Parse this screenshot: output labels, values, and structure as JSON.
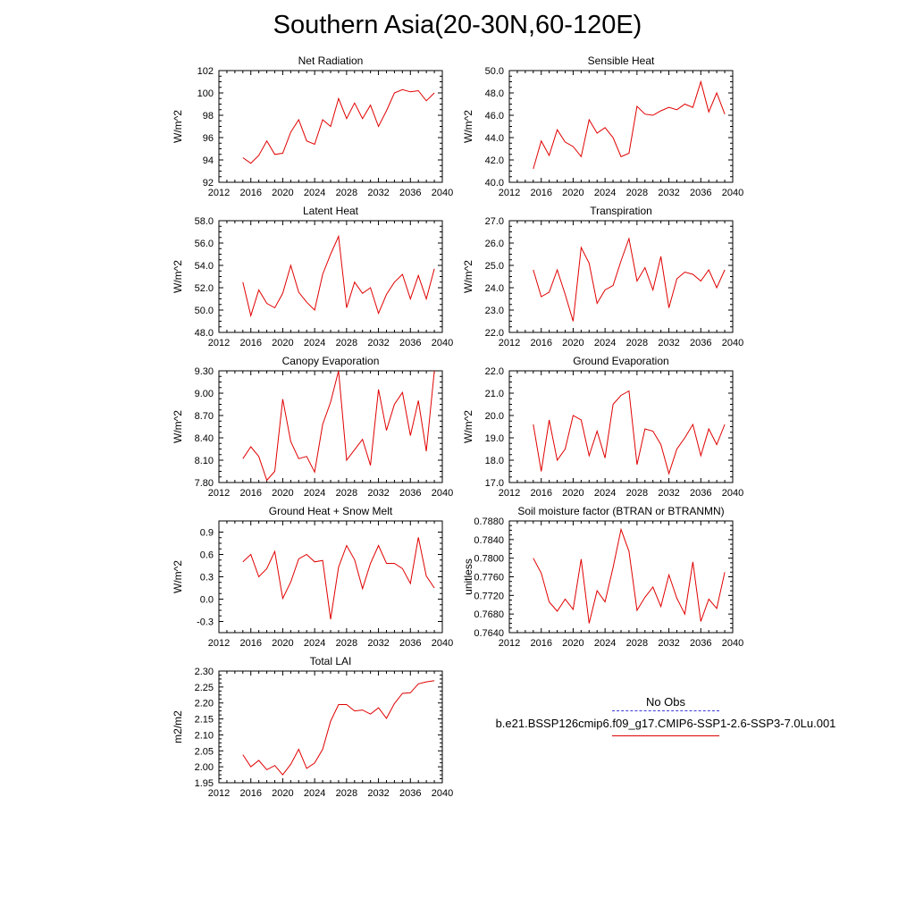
{
  "page_title": "Southern Asia(20-30N,60-120E)",
  "legend": {
    "obs_label": "No Obs",
    "case_label": "b.e21.BSSP126cmip6.f09_g17.CMIP6-SSP1-2.6-SSP3-7.0Lu.001",
    "obs_color": "#3b3bd6",
    "case_color": "#e00000"
  },
  "chart_data": [
    {
      "type": "line",
      "title": "Net Radiation",
      "ylabel": "W/m^2",
      "xlim": [
        2012,
        2040
      ],
      "xticks": [
        "2012",
        "2016",
        "2020",
        "2024",
        "2028",
        "2032",
        "2036",
        "2040"
      ],
      "ylim": [
        92,
        102
      ],
      "yticks": [
        "92",
        "94",
        "96",
        "98",
        "100",
        "102"
      ],
      "series": [
        {
          "color": "#e00000",
          "x": [
            2015,
            2016,
            2017,
            2018,
            2019,
            2020,
            2021,
            2022,
            2023,
            2024,
            2025,
            2026,
            2027,
            2028,
            2029,
            2030,
            2031,
            2032,
            2033,
            2034,
            2035,
            2036,
            2037,
            2038,
            2039
          ],
          "y": [
            94.2,
            93.7,
            94.4,
            95.7,
            94.5,
            94.6,
            96.5,
            97.6,
            95.7,
            95.4,
            97.6,
            97.0,
            99.5,
            97.7,
            99.1,
            97.7,
            98.9,
            97.0,
            98.4,
            100.0,
            100.3,
            100.1,
            100.2,
            99.3,
            100.0
          ]
        }
      ]
    },
    {
      "type": "line",
      "title": "Sensible Heat",
      "ylabel": "W/m^2",
      "xlim": [
        2012,
        2040
      ],
      "xticks": [
        "2012",
        "2016",
        "2020",
        "2024",
        "2028",
        "2032",
        "2036",
        "2040"
      ],
      "ylim": [
        40,
        50
      ],
      "yticks": [
        "40.0",
        "42.0",
        "44.0",
        "46.0",
        "48.0",
        "50.0"
      ],
      "series": [
        {
          "color": "#e00000",
          "x": [
            2015,
            2016,
            2017,
            2018,
            2019,
            2020,
            2021,
            2022,
            2023,
            2024,
            2025,
            2026,
            2027,
            2028,
            2029,
            2030,
            2031,
            2032,
            2033,
            2034,
            2035,
            2036,
            2037,
            2038,
            2039
          ],
          "y": [
            41.2,
            43.7,
            42.4,
            44.7,
            43.6,
            43.2,
            42.3,
            45.6,
            44.4,
            44.9,
            44.0,
            42.3,
            42.6,
            46.8,
            46.1,
            46.0,
            46.4,
            46.7,
            46.5,
            47.0,
            46.7,
            49.0,
            46.3,
            48.0,
            46.1
          ]
        }
      ]
    },
    {
      "type": "line",
      "title": "Latent Heat",
      "ylabel": "W/m^2",
      "xlim": [
        2012,
        2040
      ],
      "xticks": [
        "2012",
        "2016",
        "2020",
        "2024",
        "2028",
        "2032",
        "2036",
        "2040"
      ],
      "ylim": [
        48,
        58
      ],
      "yticks": [
        "48.0",
        "50.0",
        "52.0",
        "54.0",
        "56.0",
        "58.0"
      ],
      "series": [
        {
          "color": "#e00000",
          "x": [
            2015,
            2016,
            2017,
            2018,
            2019,
            2020,
            2021,
            2022,
            2023,
            2024,
            2025,
            2026,
            2027,
            2028,
            2029,
            2030,
            2031,
            2032,
            2033,
            2034,
            2035,
            2036,
            2037,
            2038,
            2039
          ],
          "y": [
            52.5,
            49.5,
            51.8,
            50.6,
            50.2,
            51.5,
            54.0,
            51.6,
            50.7,
            50.0,
            53.2,
            55.0,
            56.6,
            50.2,
            52.5,
            51.5,
            52.0,
            49.7,
            51.4,
            52.5,
            53.2,
            51.0,
            53.1,
            51.0,
            53.7
          ]
        }
      ]
    },
    {
      "type": "line",
      "title": "Transpiration",
      "ylabel": "W/m^2",
      "xlim": [
        2012,
        2040
      ],
      "xticks": [
        "2012",
        "2016",
        "2020",
        "2024",
        "2028",
        "2032",
        "2036",
        "2040"
      ],
      "ylim": [
        22,
        27
      ],
      "yticks": [
        "22.0",
        "23.0",
        "24.0",
        "25.0",
        "26.0",
        "27.0"
      ],
      "series": [
        {
          "color": "#e00000",
          "x": [
            2015,
            2016,
            2017,
            2018,
            2019,
            2020,
            2021,
            2022,
            2023,
            2024,
            2025,
            2026,
            2027,
            2028,
            2029,
            2030,
            2031,
            2032,
            2033,
            2034,
            2035,
            2036,
            2037,
            2038,
            2039
          ],
          "y": [
            24.8,
            23.6,
            23.8,
            24.8,
            23.7,
            22.5,
            25.8,
            25.1,
            23.3,
            23.9,
            24.1,
            25.2,
            26.2,
            24.3,
            24.9,
            23.9,
            25.4,
            23.1,
            24.4,
            24.7,
            24.6,
            24.3,
            24.8,
            24.0,
            24.8
          ]
        }
      ]
    },
    {
      "type": "line",
      "title": "Canopy Evaporation",
      "ylabel": "W/m^2",
      "xlim": [
        2012,
        2040
      ],
      "xticks": [
        "2012",
        "2016",
        "2020",
        "2024",
        "2028",
        "2032",
        "2036",
        "2040"
      ],
      "ylim": [
        7.8,
        9.3
      ],
      "yticks": [
        "7.80",
        "8.10",
        "8.40",
        "8.70",
        "9.00",
        "9.30"
      ],
      "series": [
        {
          "color": "#e00000",
          "x": [
            2015,
            2016,
            2017,
            2018,
            2019,
            2020,
            2021,
            2022,
            2023,
            2024,
            2025,
            2026,
            2027,
            2028,
            2029,
            2030,
            2031,
            2032,
            2033,
            2034,
            2035,
            2036,
            2037,
            2038,
            2039
          ],
          "y": [
            8.12,
            8.28,
            8.15,
            7.83,
            7.95,
            8.92,
            8.35,
            8.12,
            8.15,
            7.94,
            8.58,
            8.88,
            9.3,
            8.1,
            8.24,
            8.38,
            8.03,
            9.05,
            8.5,
            8.85,
            9.01,
            8.43,
            8.9,
            8.22,
            9.3
          ]
        }
      ]
    },
    {
      "type": "line",
      "title": "Ground Evaporation",
      "ylabel": "W/m^2",
      "xlim": [
        2012,
        2040
      ],
      "xticks": [
        "2012",
        "2016",
        "2020",
        "2024",
        "2028",
        "2032",
        "2036",
        "2040"
      ],
      "ylim": [
        17,
        22
      ],
      "yticks": [
        "17.0",
        "18.0",
        "19.0",
        "20.0",
        "21.0",
        "22.0"
      ],
      "series": [
        {
          "color": "#e00000",
          "x": [
            2015,
            2016,
            2017,
            2018,
            2019,
            2020,
            2021,
            2022,
            2023,
            2024,
            2025,
            2026,
            2027,
            2028,
            2029,
            2030,
            2031,
            2032,
            2033,
            2034,
            2035,
            2036,
            2037,
            2038,
            2039
          ],
          "y": [
            19.6,
            17.5,
            19.8,
            18.0,
            18.5,
            20.0,
            19.8,
            18.2,
            19.3,
            18.1,
            20.5,
            20.9,
            21.1,
            17.8,
            19.4,
            19.3,
            18.7,
            17.4,
            18.5,
            19.0,
            19.6,
            18.2,
            19.4,
            18.7,
            19.6
          ]
        }
      ]
    },
    {
      "type": "line",
      "title": "Ground Heat + Snow Melt",
      "ylabel": "W/m^2",
      "xlim": [
        2012,
        2040
      ],
      "xticks": [
        "2012",
        "2016",
        "2020",
        "2024",
        "2028",
        "2032",
        "2036",
        "2040"
      ],
      "ylim": [
        -0.45,
        1.05
      ],
      "yticks": [
        "-0.3",
        "0.0",
        "0.3",
        "0.6",
        "0.9"
      ],
      "ytick_values": [
        -0.3,
        0.0,
        0.3,
        0.6,
        0.9
      ],
      "series": [
        {
          "color": "#e00000",
          "x": [
            2015,
            2016,
            2017,
            2018,
            2019,
            2020,
            2021,
            2022,
            2023,
            2024,
            2025,
            2026,
            2027,
            2028,
            2029,
            2030,
            2031,
            2032,
            2033,
            2034,
            2035,
            2036,
            2037,
            2038,
            2039
          ],
          "y": [
            0.5,
            0.6,
            0.3,
            0.41,
            0.64,
            0.01,
            0.23,
            0.54,
            0.6,
            0.5,
            0.52,
            -0.27,
            0.43,
            0.72,
            0.53,
            0.14,
            0.48,
            0.72,
            0.48,
            0.48,
            0.41,
            0.21,
            0.83,
            0.31,
            0.15
          ]
        }
      ]
    },
    {
      "type": "line",
      "title": "Soil moisture factor (BTRAN or BTRANMN)",
      "ylabel": "unitless",
      "xlim": [
        2012,
        2040
      ],
      "xticks": [
        "2012",
        "2016",
        "2020",
        "2024",
        "2028",
        "2032",
        "2036",
        "2040"
      ],
      "ylim": [
        0.764,
        0.788
      ],
      "yticks": [
        "0.7640",
        "0.7680",
        "0.7720",
        "0.7760",
        "0.7800",
        "0.7840",
        "0.7880"
      ],
      "series": [
        {
          "color": "#e00000",
          "x": [
            2015,
            2016,
            2017,
            2018,
            2019,
            2020,
            2021,
            2022,
            2023,
            2024,
            2025,
            2026,
            2027,
            2028,
            2029,
            2030,
            2031,
            2032,
            2033,
            2034,
            2035,
            2036,
            2037,
            2038,
            2039
          ],
          "y": [
            0.78,
            0.7768,
            0.7706,
            0.7686,
            0.7712,
            0.769,
            0.7798,
            0.766,
            0.773,
            0.7706,
            0.778,
            0.7862,
            0.7815,
            0.7688,
            0.7716,
            0.7738,
            0.7696,
            0.7764,
            0.7714,
            0.768,
            0.7792,
            0.7664,
            0.7712,
            0.7692,
            0.777
          ]
        }
      ]
    },
    {
      "type": "line",
      "title": "Total LAI",
      "ylabel": "m2/m2",
      "xlim": [
        2012,
        2040
      ],
      "xticks": [
        "2012",
        "2016",
        "2020",
        "2024",
        "2028",
        "2032",
        "2036",
        "2040"
      ],
      "ylim": [
        1.95,
        2.3
      ],
      "yticks": [
        "1.95",
        "2.00",
        "2.05",
        "2.10",
        "2.15",
        "2.20",
        "2.25",
        "2.30"
      ],
      "series": [
        {
          "color": "#e00000",
          "x": [
            2015,
            2016,
            2017,
            2018,
            2019,
            2020,
            2021,
            2022,
            2023,
            2024,
            2025,
            2026,
            2027,
            2028,
            2029,
            2030,
            2031,
            2032,
            2033,
            2034,
            2035,
            2036,
            2037,
            2038,
            2039
          ],
          "y": [
            2.038,
            2.0,
            2.02,
            1.991,
            2.004,
            1.975,
            2.008,
            2.055,
            1.995,
            2.012,
            2.055,
            2.143,
            2.195,
            2.195,
            2.175,
            2.178,
            2.165,
            2.185,
            2.152,
            2.198,
            2.23,
            2.232,
            2.26,
            2.266,
            2.27
          ]
        }
      ]
    }
  ]
}
